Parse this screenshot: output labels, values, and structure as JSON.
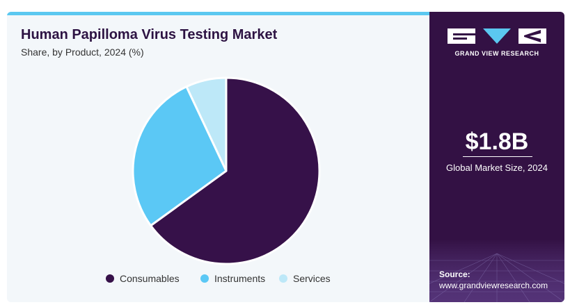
{
  "header": {
    "title": "Human Papilloma Virus Testing Market",
    "subtitle": "Share, by Product, 2024 (%)"
  },
  "sidebar": {
    "brand": "GRAND VIEW RESEARCH",
    "market_value": "$1.8B",
    "market_label": "Global Market Size, 2024",
    "source_label": "Source:",
    "source_url": "www.grandviewresearch.com"
  },
  "colors": {
    "accent_bar": "#5bc8f0",
    "panel_bg": "#331144",
    "background": "#f3f7fa"
  },
  "chart_data": {
    "type": "pie",
    "title": "Human Papilloma Virus Testing Market",
    "subtitle": "Share, by Product, 2024 (%)",
    "categories": [
      "Consumables",
      "Instruments",
      "Services"
    ],
    "values": [
      65,
      28,
      7
    ],
    "colors": [
      "#361149",
      "#5bc8f5",
      "#bde8f8"
    ],
    "start_angle_deg": 0,
    "direction": "clockwise",
    "legend": "bottom"
  }
}
